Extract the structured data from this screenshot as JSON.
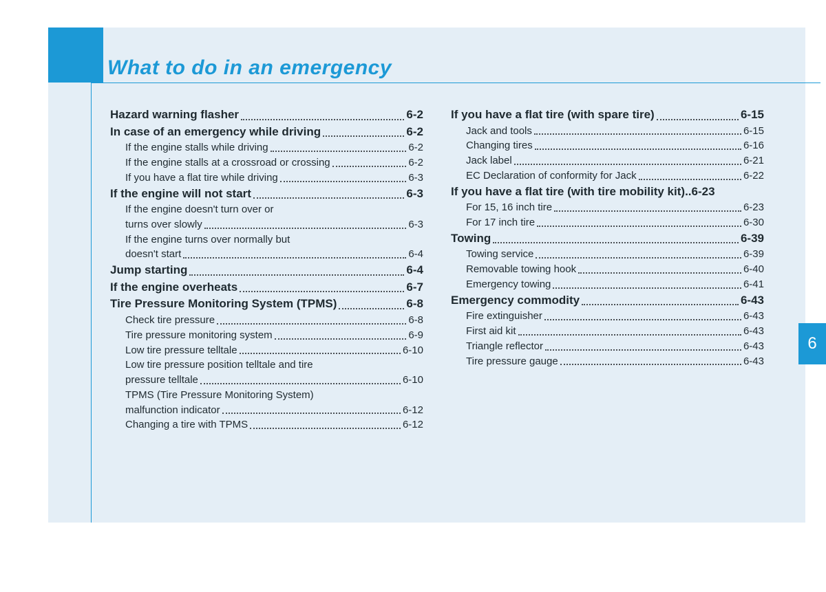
{
  "title": "What to do in an emergency",
  "chapter_tab": "6",
  "colors": {
    "accent": "#1c99d6",
    "page_bg": "#e4eef6",
    "text": "#1f2a30",
    "dots": "#4a4f54",
    "white": "#ffffff"
  },
  "columns": [
    [
      {
        "level": 0,
        "label": "Hazard warning flasher",
        "page": "6-2"
      },
      {
        "level": 0,
        "label": "In case of an emergency while driving",
        "page": "6-2"
      },
      {
        "level": 1,
        "label": "If the engine stalls while driving",
        "page": "6-2"
      },
      {
        "level": 1,
        "label": "If the engine stalls at a crossroad or crossing",
        "page": "6-2"
      },
      {
        "level": 1,
        "label": "If you have a flat tire while driving",
        "page": "6-3"
      },
      {
        "level": 0,
        "label": "If the engine will not start",
        "page": "6-3"
      },
      {
        "level": 1,
        "cont": "If the engine doesn't turn over or"
      },
      {
        "level": 1,
        "label": "turns over slowly",
        "page": "6-3"
      },
      {
        "level": 1,
        "cont": "If the engine turns over normally but"
      },
      {
        "level": 1,
        "label": "doesn't start",
        "page": "6-4"
      },
      {
        "level": 0,
        "label": "Jump starting",
        "page": "6-4"
      },
      {
        "level": 0,
        "label": "If the engine overheats",
        "page": "6-7"
      },
      {
        "level": 0,
        "label": "Tire Pressure Monitoring System (TPMS)",
        "page": "6-8"
      },
      {
        "level": 1,
        "label": "Check tire pressure",
        "page": "6-8"
      },
      {
        "level": 1,
        "label": "Tire pressure monitoring system",
        "page": "6-9"
      },
      {
        "level": 1,
        "label": "Low tire pressure telltale",
        "page": "6-10"
      },
      {
        "level": 1,
        "cont": "Low tire pressure position telltale and tire"
      },
      {
        "level": 1,
        "label": "pressure telltale",
        "page": "6-10"
      },
      {
        "level": 1,
        "cont": "TPMS (Tire Pressure Monitoring System)"
      },
      {
        "level": 1,
        "label": "malfunction indicator",
        "page": "6-12"
      },
      {
        "level": 1,
        "label": "Changing a tire with TPMS",
        "page": "6-12"
      }
    ],
    [
      {
        "level": 0,
        "label": "If you have a flat tire (with spare tire)",
        "page": "6-15"
      },
      {
        "level": 1,
        "label": "Jack and tools",
        "page": "6-15"
      },
      {
        "level": 1,
        "label": "Changing tires",
        "page": "6-16"
      },
      {
        "level": 1,
        "label": "Jack label",
        "page": "6-21"
      },
      {
        "level": 1,
        "label": "EC Declaration of conformity for Jack",
        "page": "6-22"
      },
      {
        "level": 0,
        "label": "If you have a flat tire (with tire mobility kit)",
        "page": "6-23",
        "tight": true
      },
      {
        "level": 1,
        "label": "For 15, 16 inch tire",
        "page": "6-23"
      },
      {
        "level": 1,
        "label": "For 17 inch tire",
        "page": "6-30"
      },
      {
        "level": 0,
        "label": "Towing",
        "page": "6-39"
      },
      {
        "level": 1,
        "label": "Towing service",
        "page": "6-39"
      },
      {
        "level": 1,
        "label": "Removable towing hook",
        "page": "6-40"
      },
      {
        "level": 1,
        "label": "Emergency towing",
        "page": "6-41"
      },
      {
        "level": 0,
        "label": "Emergency commodity",
        "page": "6-43"
      },
      {
        "level": 1,
        "label": "Fire extinguisher",
        "page": "6-43"
      },
      {
        "level": 1,
        "label": "First aid kit",
        "page": "6-43"
      },
      {
        "level": 1,
        "label": "Triangle reflector",
        "page": "6-43"
      },
      {
        "level": 1,
        "label": "Tire pressure gauge",
        "page": "6-43"
      }
    ]
  ]
}
